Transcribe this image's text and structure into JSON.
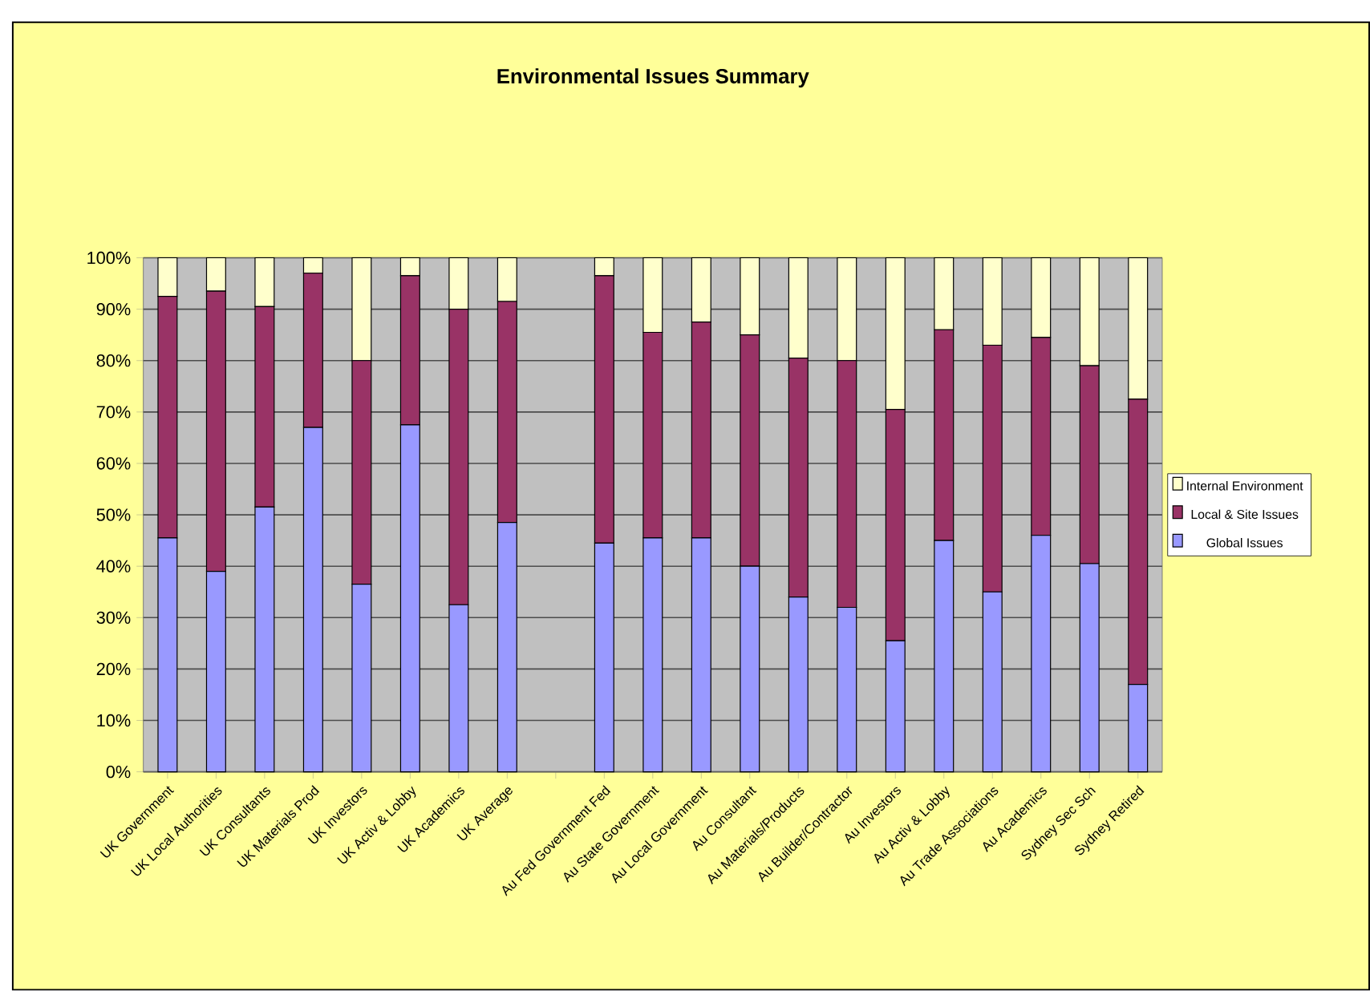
{
  "chart_data": {
    "type": "bar",
    "stacked": true,
    "title": "Environmental Issues Summary",
    "categories": [
      "UK Government",
      "UK Local Authorities",
      "UK Consultants",
      "UK Materials Prod",
      "UK Investors",
      "UK Activ & Lobby",
      "UK Academics",
      "UK Average",
      null,
      "Au Fed Government Fed",
      "Au State Government",
      "Au Local Government",
      "Au Consultant",
      "Au Materials/Products",
      "Au Builder/Contractor",
      "Au Investors",
      "Au Activ & Lobby",
      "Au Trade Associations",
      "Au Academics",
      "Sydney Sec Sch",
      "Sydney Retired"
    ],
    "series": [
      {
        "name": "Global Issues",
        "color": "#9999ff",
        "values": [
          45.5,
          39,
          51.5,
          67,
          36.5,
          67.5,
          32.5,
          48.5,
          null,
          44.5,
          45.5,
          45.5,
          40,
          34,
          32,
          25.5,
          45,
          35,
          46,
          40.5,
          17
        ]
      },
      {
        "name": "Local & Site Issues",
        "color": "#993366",
        "values": [
          47,
          54.5,
          39,
          30,
          43.5,
          29,
          57.5,
          43,
          null,
          52,
          40,
          42,
          45,
          46.5,
          48,
          45,
          41,
          48,
          38.5,
          38.5,
          55.5
        ]
      },
      {
        "name": "Internal Environment",
        "color": "#ffffcc",
        "values": [
          7.5,
          6.5,
          9.5,
          3,
          20,
          3.5,
          10,
          8.5,
          null,
          3.5,
          14.5,
          12.5,
          15,
          19.5,
          20,
          29.5,
          14,
          17,
          15.5,
          21,
          27.5
        ]
      }
    ],
    "ylim": [
      0,
      100
    ],
    "yticks": [
      {
        "value": 0,
        "label": "0%"
      },
      {
        "value": 10,
        "label": "10%"
      },
      {
        "value": 20,
        "label": "20%"
      },
      {
        "value": 30,
        "label": "30%"
      },
      {
        "value": 40,
        "label": "40%"
      },
      {
        "value": 50,
        "label": "50%"
      },
      {
        "value": 60,
        "label": "60%"
      },
      {
        "value": 70,
        "label": "70%"
      },
      {
        "value": 80,
        "label": "80%"
      },
      {
        "value": 90,
        "label": "90%"
      },
      {
        "value": 100,
        "label": "100%"
      }
    ],
    "grid": "y",
    "legend": "right"
  }
}
